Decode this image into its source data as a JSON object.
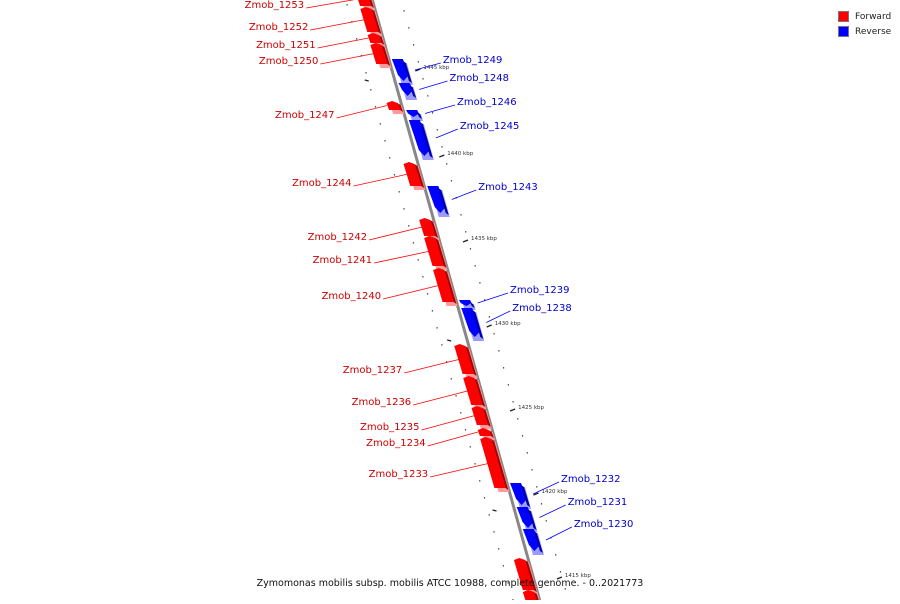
{
  "caption": "Zymomonas mobilis subsp. mobilis ATCC 10988, complete genome. - 0..2021773",
  "legend": {
    "items": [
      {
        "label": "Forward",
        "color": "#ff0000"
      },
      {
        "label": "Reverse",
        "color": "#0000ff"
      }
    ]
  },
  "colors": {
    "forward": "#ff0000",
    "forward_label": "#cc0000",
    "reverse": "#0000ff",
    "reverse_label": "#0000cc",
    "backbone": "#888888"
  },
  "genes": [
    {
      "name": "Zmob_1253",
      "strand": "forward"
    },
    {
      "name": "Zmob_1252",
      "strand": "forward"
    },
    {
      "name": "Zmob_1251",
      "strand": "forward"
    },
    {
      "name": "Zmob_1250",
      "strand": "forward"
    },
    {
      "name": "Zmob_1249",
      "strand": "reverse"
    },
    {
      "name": "Zmob_1248",
      "strand": "reverse"
    },
    {
      "name": "Zmob_1247",
      "strand": "forward"
    },
    {
      "name": "Zmob_1246",
      "strand": "reverse"
    },
    {
      "name": "Zmob_1245",
      "strand": "reverse"
    },
    {
      "name": "Zmob_1244",
      "strand": "forward"
    },
    {
      "name": "Zmob_1243",
      "strand": "reverse"
    },
    {
      "name": "Zmob_1242",
      "strand": "forward"
    },
    {
      "name": "Zmob_1241",
      "strand": "forward"
    },
    {
      "name": "Zmob_1240",
      "strand": "forward"
    },
    {
      "name": "Zmob_1239",
      "strand": "reverse"
    },
    {
      "name": "Zmob_1238",
      "strand": "reverse"
    },
    {
      "name": "Zmob_1237",
      "strand": "forward"
    },
    {
      "name": "Zmob_1236",
      "strand": "forward"
    },
    {
      "name": "Zmob_1235",
      "strand": "forward"
    },
    {
      "name": "Zmob_1234",
      "strand": "forward"
    },
    {
      "name": "Zmob_1233",
      "strand": "forward"
    },
    {
      "name": "Zmob_1232",
      "strand": "reverse"
    },
    {
      "name": "Zmob_1231",
      "strand": "reverse"
    },
    {
      "name": "Zmob_1230",
      "strand": "reverse"
    },
    {
      "name": "",
      "strand": "forward"
    },
    {
      "name": "",
      "strand": "forward"
    }
  ],
  "ticks": [
    "1445 kbp",
    "1440 kbp",
    "1435 kbp",
    "1430 kbp",
    "1425 kbp",
    "1420 kbp",
    "1415 kbp"
  ]
}
